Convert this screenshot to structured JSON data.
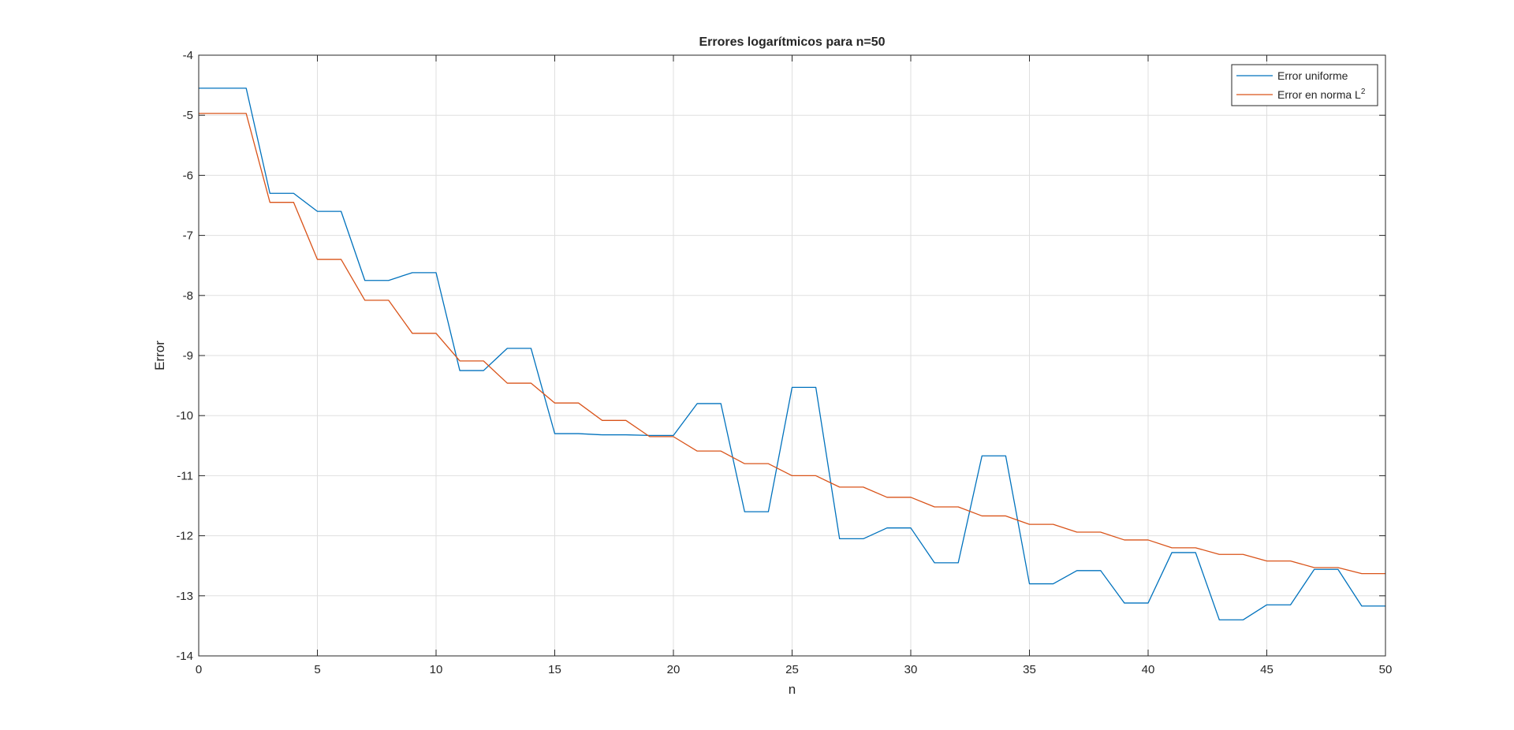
{
  "chart_data": {
    "type": "line",
    "title": "Errores logarítmicos para n=50",
    "xlabel": "n",
    "ylabel": "Error",
    "xlim": [
      0,
      50
    ],
    "ylim": [
      -14,
      -4
    ],
    "xticks": [
      0,
      5,
      10,
      15,
      20,
      25,
      30,
      35,
      40,
      45,
      50
    ],
    "yticks": [
      -4,
      -5,
      -6,
      -7,
      -8,
      -9,
      -10,
      -11,
      -12,
      -13,
      -14
    ],
    "grid": true,
    "legend_position": "top-right",
    "legend": [
      "Error uniforme",
      "Error en norma L²"
    ],
    "legend_l2_base": "Error en norma L",
    "legend_l2_sup": "2",
    "series": [
      {
        "name": "Error uniforme",
        "color": "#0072BD",
        "x": [
          0,
          1,
          2,
          3,
          4,
          5,
          6,
          7,
          8,
          9,
          10,
          11,
          12,
          13,
          14,
          15,
          16,
          17,
          18,
          19,
          20,
          21,
          22,
          23,
          24,
          25,
          26,
          27,
          28,
          29,
          30,
          31,
          32,
          33,
          34,
          35,
          36,
          37,
          38,
          39,
          40,
          41,
          42,
          43,
          44,
          45,
          46,
          47,
          48,
          49,
          50
        ],
        "y": [
          -4.55,
          -4.55,
          -4.55,
          -6.3,
          -6.3,
          -6.6,
          -6.6,
          -7.75,
          -7.75,
          -7.62,
          -7.62,
          -9.25,
          -9.25,
          -8.88,
          -8.88,
          -10.3,
          -10.3,
          -10.32,
          -10.32,
          -10.33,
          -10.33,
          -9.8,
          -9.8,
          -11.6,
          -11.6,
          -9.53,
          -9.53,
          -12.05,
          -12.05,
          -11.87,
          -11.87,
          -12.45,
          -12.45,
          -10.67,
          -10.67,
          -12.8,
          -12.8,
          -12.58,
          -12.58,
          -13.12,
          -13.12,
          -12.28,
          -12.28,
          -13.4,
          -13.4,
          -13.15,
          -13.15,
          -12.56,
          -12.56,
          -13.17,
          -13.17
        ]
      },
      {
        "name": "Error en norma L²",
        "color": "#D95319",
        "x": [
          0,
          1,
          2,
          3,
          4,
          5,
          6,
          7,
          8,
          9,
          10,
          11,
          12,
          13,
          14,
          15,
          16,
          17,
          18,
          19,
          20,
          21,
          22,
          23,
          24,
          25,
          26,
          27,
          28,
          29,
          30,
          31,
          32,
          33,
          34,
          35,
          36,
          37,
          38,
          39,
          40,
          41,
          42,
          43,
          44,
          45,
          46,
          47,
          48,
          49,
          50
        ],
        "y": [
          -4.97,
          -4.97,
          -4.97,
          -6.45,
          -6.45,
          -7.4,
          -7.4,
          -8.08,
          -8.08,
          -8.63,
          -8.63,
          -9.09,
          -9.09,
          -9.46,
          -9.46,
          -9.79,
          -9.79,
          -10.08,
          -10.08,
          -10.35,
          -10.35,
          -10.59,
          -10.59,
          -10.8,
          -10.8,
          -11.0,
          -11.0,
          -11.19,
          -11.19,
          -11.36,
          -11.36,
          -11.52,
          -11.52,
          -11.67,
          -11.67,
          -11.81,
          -11.81,
          -11.94,
          -11.94,
          -12.07,
          -12.07,
          -12.2,
          -12.2,
          -12.31,
          -12.31,
          -12.42,
          -12.42,
          -12.53,
          -12.53,
          -12.63,
          -12.63
        ]
      }
    ]
  }
}
